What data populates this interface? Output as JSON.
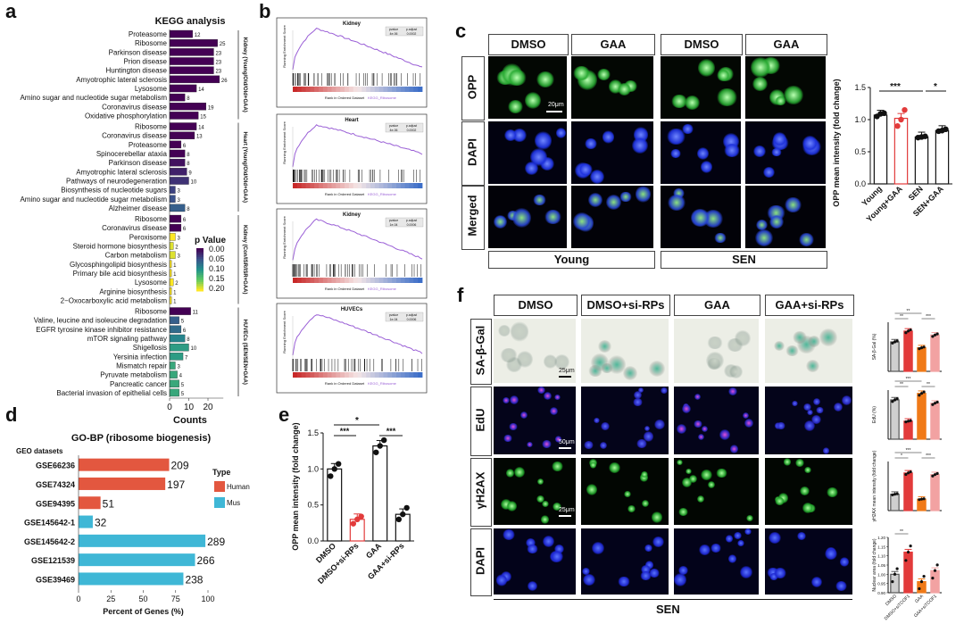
{
  "panels": {
    "a": "a",
    "b": "b",
    "c": "c",
    "d": "d",
    "e": "e",
    "f": "f"
  },
  "colors": {
    "purple": "#4a1f7a",
    "mid_blue": "#2d6e8e",
    "teal": "#2b9a84",
    "yellow": "#e3d23a",
    "human": "#e3573f",
    "mus": "#3fb7d6",
    "red": "#e23b3b",
    "orange": "#f07a18",
    "pink": "#f2a2a2",
    "gsea_line": "#9a5fd6"
  },
  "panel_a": {
    "title": "KEGG analysis",
    "xlabel": "Counts",
    "xticks": [
      "0",
      "10",
      "20"
    ],
    "legend_title": "p Value",
    "legend_ticks": [
      "0.00",
      "0.05",
      "0.10",
      "0.15",
      "0.20"
    ],
    "groups": [
      {
        "label": "Kidney (Young/Old/Old+GAA)",
        "items": [
          {
            "name": "Proteasome",
            "count": 12,
            "p": 0.0
          },
          {
            "name": "Ribosome",
            "count": 25,
            "p": 0.0
          },
          {
            "name": "Parkinson disease",
            "count": 23,
            "p": 0.0
          },
          {
            "name": "Prion disease",
            "count": 23,
            "p": 0.0
          },
          {
            "name": "Huntington disease",
            "count": 23,
            "p": 0.0
          },
          {
            "name": "Amyotrophic lateral sclerosis",
            "count": 26,
            "p": 0.0
          },
          {
            "name": "Lysosome",
            "count": 14,
            "p": 0.0
          },
          {
            "name": "Amino sugar and nucleotide sugar metabolism",
            "count": 8,
            "p": 0.0
          },
          {
            "name": "Coronavirus disease",
            "count": 19,
            "p": 0.0
          },
          {
            "name": "Oxidative phosphorylation",
            "count": 15,
            "p": 0.0
          }
        ]
      },
      {
        "label": "Heart (Young/Old/Old+GAA)",
        "items": [
          {
            "name": "Ribosome",
            "count": 14,
            "p": 0.0
          },
          {
            "name": "Coronavirus disease",
            "count": 13,
            "p": 0.0
          },
          {
            "name": "Proteasome",
            "count": 6,
            "p": 0.0
          },
          {
            "name": "Spinocerebellar ataxia",
            "count": 8,
            "p": 0.0
          },
          {
            "name": "Parkinson disease",
            "count": 8,
            "p": 0.01
          },
          {
            "name": "Amyotrophic lateral sclerosis",
            "count": 9,
            "p": 0.02
          },
          {
            "name": "Pathways of neurodegeneration",
            "count": 10,
            "p": 0.03
          },
          {
            "name": "Biosynthesis of nucleotide sugars",
            "count": 3,
            "p": 0.04
          },
          {
            "name": "Amino sugar and nucleotide sugar metabolism",
            "count": 3,
            "p": 0.05
          },
          {
            "name": "Alzheimer disease",
            "count": 8,
            "p": 0.06
          }
        ]
      },
      {
        "label": "Kidney (Con/ISR/ISR+GAA)",
        "items": [
          {
            "name": "Ribosome",
            "count": 6,
            "p": 0.0
          },
          {
            "name": "Coronavirus disease",
            "count": 6,
            "p": 0.0
          },
          {
            "name": "Peroxisome",
            "count": 3,
            "p": 0.2
          },
          {
            "name": "Steroid hormone biosynthesis",
            "count": 2,
            "p": 0.19
          },
          {
            "name": "Carbon metabolism",
            "count": 3,
            "p": 0.19
          },
          {
            "name": "Glycosphingolipid biosynthesis",
            "count": 1,
            "p": 0.2
          },
          {
            "name": "Primary bile acid biosynthesis",
            "count": 1,
            "p": 0.2
          },
          {
            "name": "Lysosome",
            "count": 2,
            "p": 0.2
          },
          {
            "name": "Arginine biosynthesis",
            "count": 1,
            "p": 0.2
          },
          {
            "name": "2−Oxocarboxylic acid metabolism",
            "count": 1,
            "p": 0.2
          }
        ]
      },
      {
        "label": "HUVECs (SEN/SEN+GAA)",
        "items": [
          {
            "name": "Ribosome",
            "count": 11,
            "p": 0.0
          },
          {
            "name": "Valine, leucine and isoleucine degradation",
            "count": 5,
            "p": 0.06
          },
          {
            "name": "EGFR tyrosine kinase inhibitor resistance",
            "count": 6,
            "p": 0.07
          },
          {
            "name": "mTOR signaling pathway",
            "count": 8,
            "p": 0.09
          },
          {
            "name": "Shigellosis",
            "count": 10,
            "p": 0.11
          },
          {
            "name": "Yersinia infection",
            "count": 7,
            "p": 0.11
          },
          {
            "name": "Mismatch repair",
            "count": 3,
            "p": 0.12
          },
          {
            "name": "Pyruvate metabolism",
            "count": 4,
            "p": 0.12
          },
          {
            "name": "Pancreatic cancer",
            "count": 5,
            "p": 0.12
          },
          {
            "name": "Bacterial invasion of epithelial cells",
            "count": 5,
            "p": 0.12
          }
        ]
      }
    ]
  },
  "panel_b": {
    "plots": [
      {
        "title": "Kidney",
        "y": "Running Enrichment Score",
        "x": "Rank in Ordered Dataset",
        "tag": "KEGG_Ribosome",
        "stat1": "pvalue",
        "stat2": "p.adjust",
        "v1": "4e-06",
        "v2": "0.0002"
      },
      {
        "title": "Heart",
        "y": "Running Enrichment Score",
        "x": "Rank in Ordered Dataset",
        "tag": "KEGG_Ribosome",
        "stat1": "pvalue",
        "stat2": "p.adjust",
        "v1": "4e-06",
        "v2": "0.0002"
      },
      {
        "title": "Kidney",
        "y": "Running Enrichment Score",
        "x": "Rank in Ordered Dataset",
        "tag": "KEGG_Ribosome",
        "stat1": "pvalue",
        "stat2": "p.adjust",
        "v1": "1e-04",
        "v2": "0.0006"
      },
      {
        "title": "HUVECs",
        "y": "Running Enrichment Score",
        "x": "Rank in Ordered Dataset",
        "tag": "KEGG_Ribosome",
        "stat1": "pvalue",
        "stat2": "p.adjust",
        "v1": "1e-04",
        "v2": "0.0006"
      }
    ]
  },
  "panel_c": {
    "col_labels": [
      "DMSO",
      "GAA",
      "DMSO",
      "GAA"
    ],
    "row_labels": [
      "OPP",
      "DAPI",
      "Merged"
    ],
    "group_labels": [
      "Young",
      "SEN"
    ],
    "scale": "20μm",
    "ylabel": "OPP mean intensity (fold change)",
    "yticks": [
      "0.0",
      "0.5",
      "1.0",
      "1.5"
    ],
    "sig1": "***",
    "sig2": "*"
  },
  "chart_data": [
    {
      "type": "bar",
      "panel": "c",
      "categories": [
        "Young",
        "Young+GAA",
        "SEN",
        "SEN+GAA"
      ],
      "values": [
        1.07,
        1.02,
        0.73,
        0.83
      ],
      "ylabel": "OPP mean intensity (fold change)",
      "ylim": [
        0,
        1.5
      ],
      "points": [
        [
          1.05,
          1.09,
          1.1
        ],
        [
          0.9,
          1.0,
          1.15
        ],
        [
          0.72,
          0.73,
          0.74
        ],
        [
          0.82,
          0.83,
          0.85
        ]
      ]
    },
    {
      "type": "bar",
      "panel": "d",
      "title": "GO-BP (ribosome biogenesis)",
      "xlabel": "Percent of Genes (%)",
      "categories": [
        "GSE66236",
        "GSE74324",
        "GSE94395",
        "GSE145642-1",
        "GSE145642-2",
        "GSE121539",
        "GSE39469"
      ],
      "values": [
        70,
        67,
        17,
        11,
        98,
        90,
        81
      ],
      "labels": [
        "209",
        "197",
        "51",
        "32",
        "289",
        "266",
        "238"
      ],
      "types": [
        "Human",
        "Human",
        "Human",
        "Mus",
        "Mus",
        "Mus",
        "Mus"
      ],
      "xlim": [
        0,
        100
      ],
      "xticks": [
        "0",
        "25",
        "50",
        "75",
        "100"
      ],
      "axis_title": "GEO datasets",
      "legend_title": "Type",
      "legend": [
        "Human",
        "Mus"
      ]
    },
    {
      "type": "bar",
      "panel": "e",
      "categories": [
        "DMSO",
        "DMSO+si-RPs",
        "GAA",
        "GAA+si-RPs"
      ],
      "values": [
        1.0,
        0.3,
        1.32,
        0.37
      ],
      "ylabel": "OPP mean intensity (fold change)",
      "ylim": [
        0,
        1.5
      ],
      "points": [
        [
          0.9,
          1.0,
          1.07
        ],
        [
          0.24,
          0.3,
          0.34
        ],
        [
          1.23,
          1.32,
          1.4
        ],
        [
          0.3,
          0.37,
          0.46
        ]
      ],
      "yticks": [
        "0.0",
        "0.5",
        "1.0",
        "1.5"
      ],
      "sig": [
        "*",
        "***",
        "***"
      ]
    },
    {
      "type": "bar",
      "panel": "f",
      "categories": [
        "DMSO",
        "DMSO+si-RPs",
        "GAA",
        "GAA+si-RPs"
      ],
      "minicharts": [
        {
          "ylabel": "SA-β-Gal (%)",
          "values": [
            60,
            82,
            48,
            74
          ],
          "ylim": [
            0,
            100
          ],
          "sig": [
            "**",
            "**",
            "***"
          ]
        },
        {
          "ylabel": "EdU (%)",
          "values": [
            24,
            11,
            28,
            22
          ],
          "ylim": [
            0,
            30
          ],
          "sig": [
            "**",
            "***",
            "**"
          ]
        },
        {
          "ylabel": "γH2AX mean intensity (fold change)",
          "values": [
            1.0,
            2.3,
            0.7,
            2.2
          ],
          "ylim": [
            0,
            3
          ],
          "sig": [
            "*",
            "***",
            "***"
          ]
        },
        {
          "ylabel": "Nuclear area (fold change)",
          "values": [
            1.0,
            1.12,
            0.96,
            1.02
          ],
          "ylim": [
            0.9,
            1.2
          ],
          "sig": [
            "**"
          ],
          "xticks": [
            "DMSO",
            "DMSO+siTCOF1",
            "GAA",
            "GAA+siTCOF1"
          ],
          "yticks": [
            "0.90",
            "0.95",
            "1.00",
            "1.05",
            "1.10",
            "1.15",
            "1.20"
          ]
        }
      ]
    }
  ],
  "panel_d": {
    "title": "GO-BP (ribosome biogenesis)"
  },
  "panel_f": {
    "col_labels": [
      "DMSO",
      "DMSO+si-RPs",
      "GAA",
      "GAA+si-RPs"
    ],
    "row_labels": [
      "SA-β-Gal",
      "EdU",
      "γH2AX",
      "DAPI"
    ],
    "group_label": "SEN",
    "scales": [
      "25μm",
      "50μm",
      "25μm"
    ]
  }
}
